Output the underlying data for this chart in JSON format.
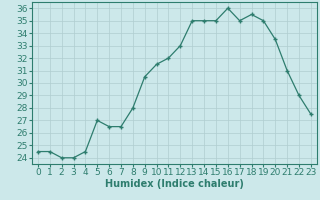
{
  "x": [
    0,
    1,
    2,
    3,
    4,
    5,
    6,
    7,
    8,
    9,
    10,
    11,
    12,
    13,
    14,
    15,
    16,
    17,
    18,
    19,
    20,
    21,
    22,
    23
  ],
  "y": [
    24.5,
    24.5,
    24.0,
    24.0,
    24.5,
    27.0,
    26.5,
    26.5,
    28.0,
    30.5,
    31.5,
    32.0,
    33.0,
    35.0,
    35.0,
    35.0,
    36.0,
    35.0,
    35.5,
    35.0,
    33.5,
    31.0,
    29.0,
    27.5
  ],
  "xlabel": "Humidex (Indice chaleur)",
  "ylim": [
    23.5,
    36.5
  ],
  "xlim": [
    -0.5,
    23.5
  ],
  "yticks": [
    24,
    25,
    26,
    27,
    28,
    29,
    30,
    31,
    32,
    33,
    34,
    35,
    36
  ],
  "xticks": [
    0,
    1,
    2,
    3,
    4,
    5,
    6,
    7,
    8,
    9,
    10,
    11,
    12,
    13,
    14,
    15,
    16,
    17,
    18,
    19,
    20,
    21,
    22,
    23
  ],
  "line_color": "#2e7d6e",
  "bg_color": "#cce8ea",
  "grid_color": "#b0ced0",
  "label_fontsize": 7,
  "tick_fontsize": 6.5
}
